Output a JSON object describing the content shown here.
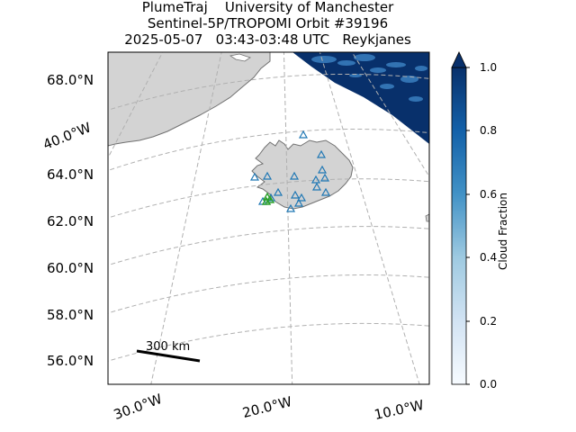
{
  "title": {
    "line1": "PlumeTraj    University of Manchester",
    "line2": "Sentinel-5P/TROPOMI Orbit #39196",
    "line3": "2025-05-07   03:43-03:48 UTC   Reykjanes"
  },
  "map": {
    "latitude_labels": [
      "68.0°N",
      "64.0°N",
      "62.0°N",
      "60.0°N",
      "58.0°N",
      "56.0°N"
    ],
    "longitude_labels": [
      "30.0°W",
      "20.0°W",
      "10.0°W"
    ],
    "rotated_label": "40.0°W",
    "scale_bar_label": "300 km",
    "land_color": "#d3d3d3",
    "coast_color": "#707070",
    "grid_color": "#b0b0b0",
    "station_marker_color": "#1f77b4",
    "source_marker_color": "#2ca02c"
  },
  "colorbar": {
    "label": "Cloud Fraction",
    "ticks": [
      "1.0",
      "0.8",
      "0.6",
      "0.4",
      "0.2",
      "0.0"
    ],
    "range": [
      0.0,
      1.0
    ],
    "color_low": "#f7fbff",
    "color_high": "#08306b"
  }
}
